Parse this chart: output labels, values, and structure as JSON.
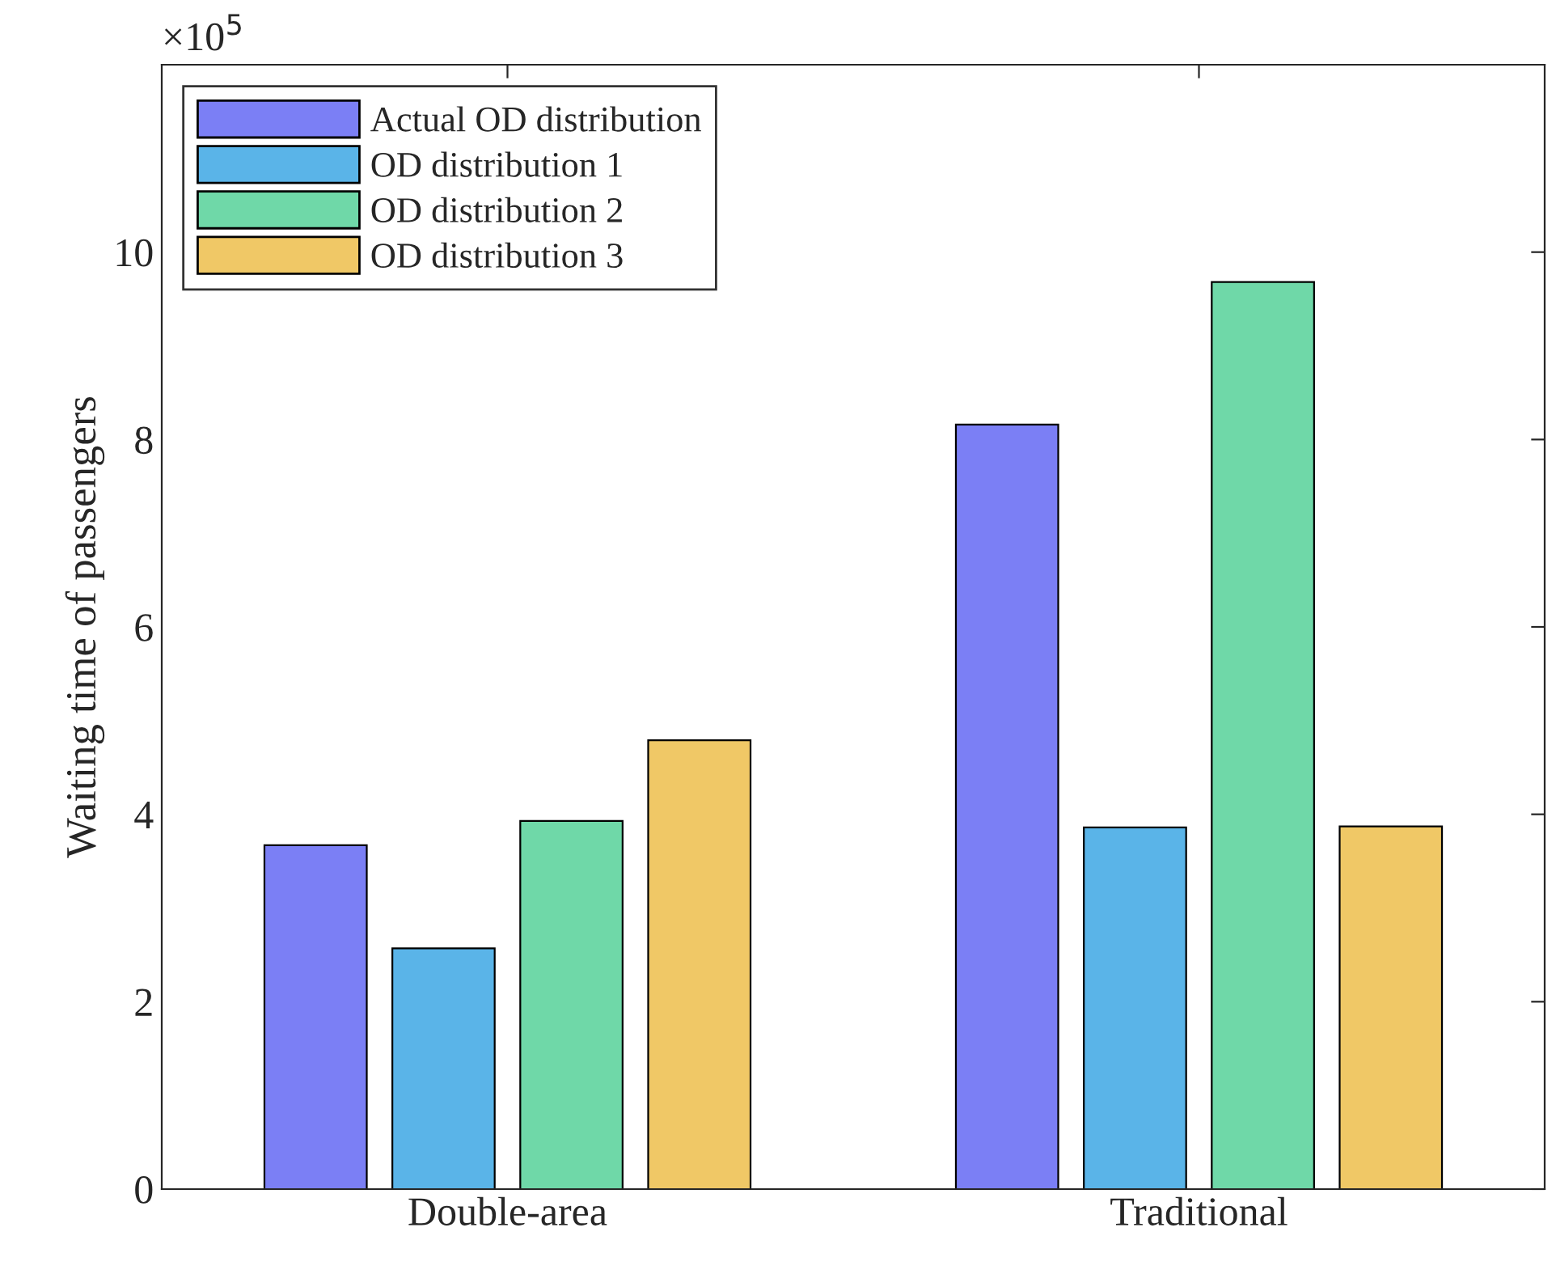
{
  "chart_data": {
    "type": "bar",
    "ylabel": "Waiting time of passengers",
    "categories": [
      "Double-area",
      "Traditional"
    ],
    "series": [
      {
        "name": "Actual OD distribution",
        "color": "#7b7ff5",
        "values": [
          3.67,
          8.16
        ]
      },
      {
        "name": "OD distribution 1",
        "color": "#5ab4e8",
        "values": [
          2.57,
          3.86
        ]
      },
      {
        "name": "OD distribution 2",
        "color": "#6fd8a8",
        "values": [
          3.93,
          9.68
        ]
      },
      {
        "name": "OD distribution 3",
        "color": "#f0c866",
        "values": [
          4.79,
          3.87
        ]
      }
    ],
    "ylim": [
      0,
      12
    ],
    "yticks": [
      0,
      2,
      4,
      6,
      8,
      10
    ],
    "grid": false,
    "legend": "top left",
    "annotations": [
      "×10$^{5}$"
    ]
  }
}
